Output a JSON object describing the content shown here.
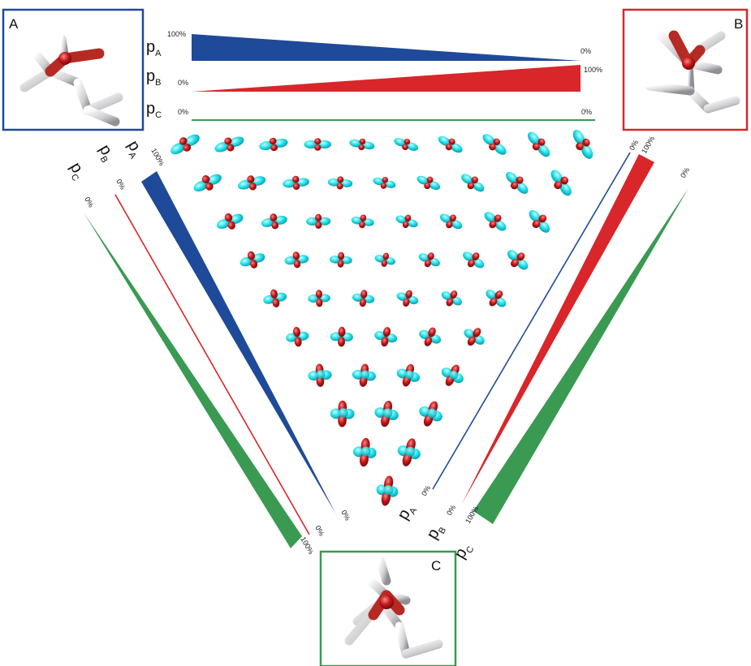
{
  "colors": {
    "A": "#1f4a9a",
    "B": "#d8262b",
    "C": "#3a9a52",
    "lobe_cyan": "#22e2ea",
    "lobe_red": "#c41518"
  },
  "panels": {
    "A_label": "A",
    "B_label": "B",
    "C_label": "C"
  },
  "top_bars": {
    "pA": {
      "symbol": "p",
      "sub": "A",
      "left": "100%",
      "right": "0%"
    },
    "pB": {
      "symbol": "p",
      "sub": "B",
      "left": "0%",
      "right": "100%"
    },
    "pC": {
      "symbol": "p",
      "sub": "C",
      "left": "0%",
      "right": "0%"
    }
  },
  "left_bars": {
    "pA": {
      "symbol": "p",
      "sub": "A",
      "top": "100%",
      "bottom": "0%"
    },
    "pB": {
      "symbol": "p",
      "sub": "B",
      "top": "0%",
      "bottom": "0%"
    },
    "pC": {
      "symbol": "p",
      "sub": "C",
      "top": "0%",
      "bottom": "100%"
    }
  },
  "right_bars": {
    "pA": {
      "symbol": "p",
      "sub": "A",
      "top": "0%",
      "bottom": "0%"
    },
    "pB": {
      "symbol": "p",
      "sub": "B",
      "top": "100%",
      "bottom": "0%"
    },
    "pC": {
      "symbol": "p",
      "sub": "C",
      "top": "0%",
      "bottom": "100%"
    }
  },
  "orbital_rows": [
    10,
    9,
    8,
    7,
    6,
    5,
    4,
    3,
    2,
    1
  ]
}
